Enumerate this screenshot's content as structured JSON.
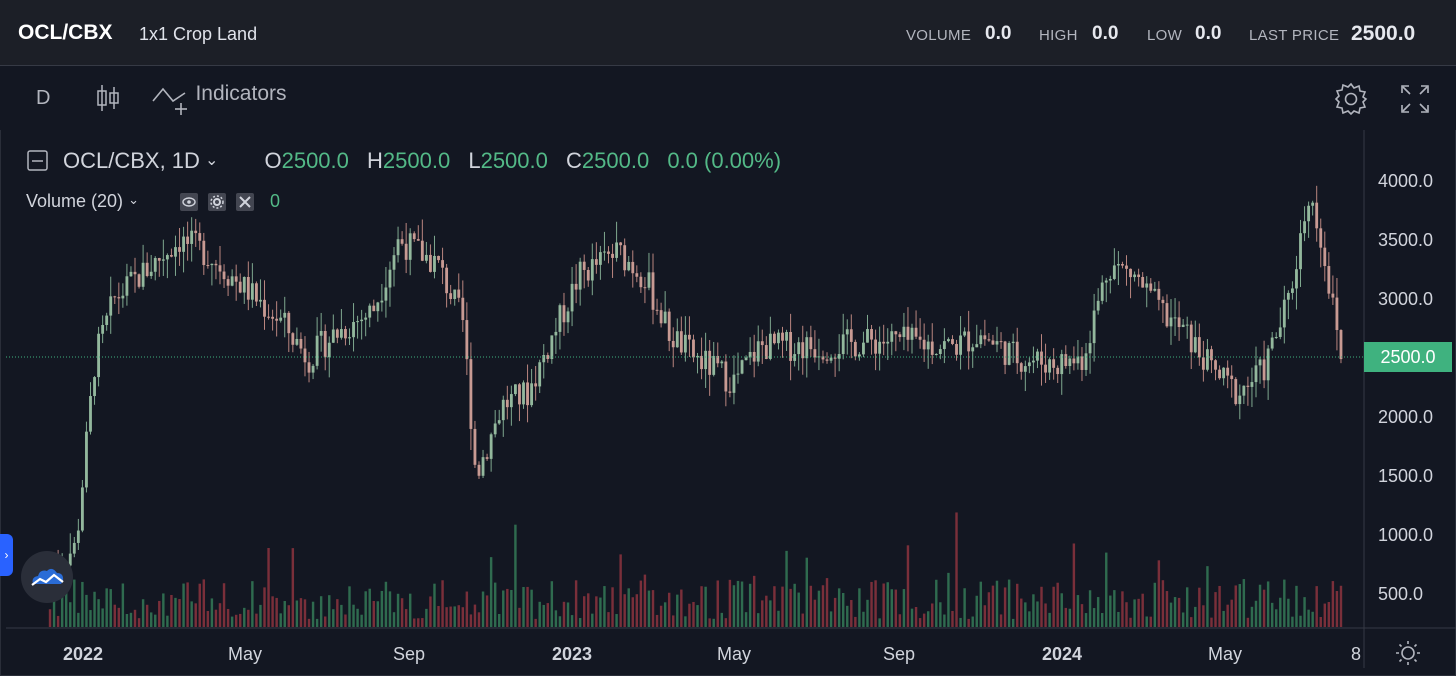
{
  "header": {
    "symbol": "OCL/CBX",
    "name": "1x1 Crop Land",
    "stats": [
      {
        "label": "VOLUME",
        "value": "0.0"
      },
      {
        "label": "HIGH",
        "value": "0.0"
      },
      {
        "label": "LOW",
        "value": "0.0"
      },
      {
        "label": "LAST PRICE",
        "value": "2500.0"
      }
    ]
  },
  "toolbar": {
    "interval": "D",
    "indicators_label": "Indicators"
  },
  "legend": {
    "symbol_interval": "OCL/CBX, 1D",
    "o_label": "O",
    "o_value": "2500.0",
    "h_label": "H",
    "h_value": "2500.0",
    "l_label": "L",
    "l_value": "2500.0",
    "c_label": "C",
    "c_value": "2500.0",
    "change": "0.0 (0.00%)",
    "volume_label": "Volume (20)",
    "volume_value": "0"
  },
  "price_tag": "2500.0",
  "colors": {
    "up": "#53b987",
    "down": "#eb4d5c",
    "accent": "#2962ff",
    "price_line": "#3fb27f"
  },
  "chart_data": {
    "type": "candlestick",
    "interval": "1D",
    "y_axis": {
      "ticks": [
        "4000.0",
        "3500.0",
        "3000.0",
        "2500.0",
        "2000.0",
        "1500.0",
        "1000.0",
        "500.0"
      ],
      "range": [
        400,
        4200
      ]
    },
    "x_axis": {
      "ticks": [
        {
          "label": "2022",
          "bold": true
        },
        {
          "label": "May",
          "bold": false
        },
        {
          "label": "Sep",
          "bold": false
        },
        {
          "label": "2023",
          "bold": true
        },
        {
          "label": "May",
          "bold": false
        },
        {
          "label": "Sep",
          "bold": false
        },
        {
          "label": "2024",
          "bold": true
        },
        {
          "label": "May",
          "bold": false
        },
        {
          "label": "8",
          "bold": false
        }
      ]
    },
    "last_price": 2500,
    "close_path": [
      [
        0.0,
        700
      ],
      [
        0.02,
        900
      ],
      [
        0.035,
        2500
      ],
      [
        0.05,
        3000
      ],
      [
        0.08,
        3300
      ],
      [
        0.1,
        3500
      ],
      [
        0.12,
        3400
      ],
      [
        0.15,
        3100
      ],
      [
        0.18,
        2800
      ],
      [
        0.2,
        2500
      ],
      [
        0.22,
        2700
      ],
      [
        0.25,
        2900
      ],
      [
        0.27,
        3500
      ],
      [
        0.3,
        3300
      ],
      [
        0.32,
        2800
      ],
      [
        0.33,
        1500
      ],
      [
        0.35,
        2100
      ],
      [
        0.37,
        2200
      ],
      [
        0.39,
        2700
      ],
      [
        0.41,
        3200
      ],
      [
        0.44,
        3400
      ],
      [
        0.46,
        3200
      ],
      [
        0.48,
        2700
      ],
      [
        0.5,
        2500
      ],
      [
        0.53,
        2300
      ],
      [
        0.55,
        2600
      ],
      [
        0.6,
        2600
      ],
      [
        0.65,
        2650
      ],
      [
        0.7,
        2600
      ],
      [
        0.72,
        2700
      ],
      [
        0.75,
        2500
      ],
      [
        0.78,
        2450
      ],
      [
        0.8,
        2500
      ],
      [
        0.82,
        3300
      ],
      [
        0.84,
        3200
      ],
      [
        0.86,
        2900
      ],
      [
        0.88,
        2700
      ],
      [
        0.9,
        2400
      ],
      [
        0.92,
        2200
      ],
      [
        0.94,
        2400
      ],
      [
        0.96,
        3000
      ],
      [
        0.975,
        3900
      ],
      [
        0.985,
        3500
      ],
      [
        1.0,
        2500
      ]
    ]
  }
}
